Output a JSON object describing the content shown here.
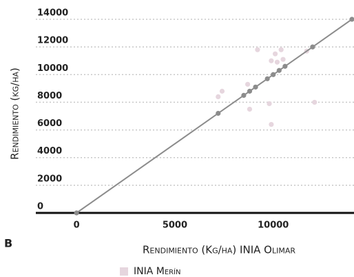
{
  "chart_data": {
    "type": "scatter",
    "panel_label": "B",
    "xlabel": "Rendimiento (Kg/ha) INIA Olimar",
    "ylabel": "Rendimiento (kg/ha)",
    "xlim": [
      -2000,
      14000
    ],
    "ylim": [
      0,
      14000
    ],
    "xticks": [
      0,
      5000,
      10000
    ],
    "yticks": [
      0,
      2000,
      4000,
      6000,
      8000,
      10000,
      12000,
      14000
    ],
    "grid": true,
    "series": [
      {
        "name": "INIA Merín",
        "color": "#e6d6de",
        "x": [
          7200,
          7400,
          8700,
          8800,
          9200,
          9800,
          9900,
          9900,
          10100,
          10200,
          10400,
          10500,
          11700,
          12100
        ],
        "values": [
          8400,
          8800,
          9300,
          7500,
          11800,
          7900,
          11000,
          6400,
          11500,
          10900,
          11800,
          11100,
          11700,
          8000
        ]
      },
      {
        "color": "#8c8c8c",
        "line": true,
        "x": [
          0,
          7200,
          8500,
          8800,
          9100,
          9700,
          10000,
          10300,
          10600,
          12000,
          14000
        ],
        "values": [
          0,
          7200,
          8500,
          8800,
          9100,
          9700,
          10000,
          10300,
          10600,
          12000,
          14000
        ]
      }
    ]
  }
}
